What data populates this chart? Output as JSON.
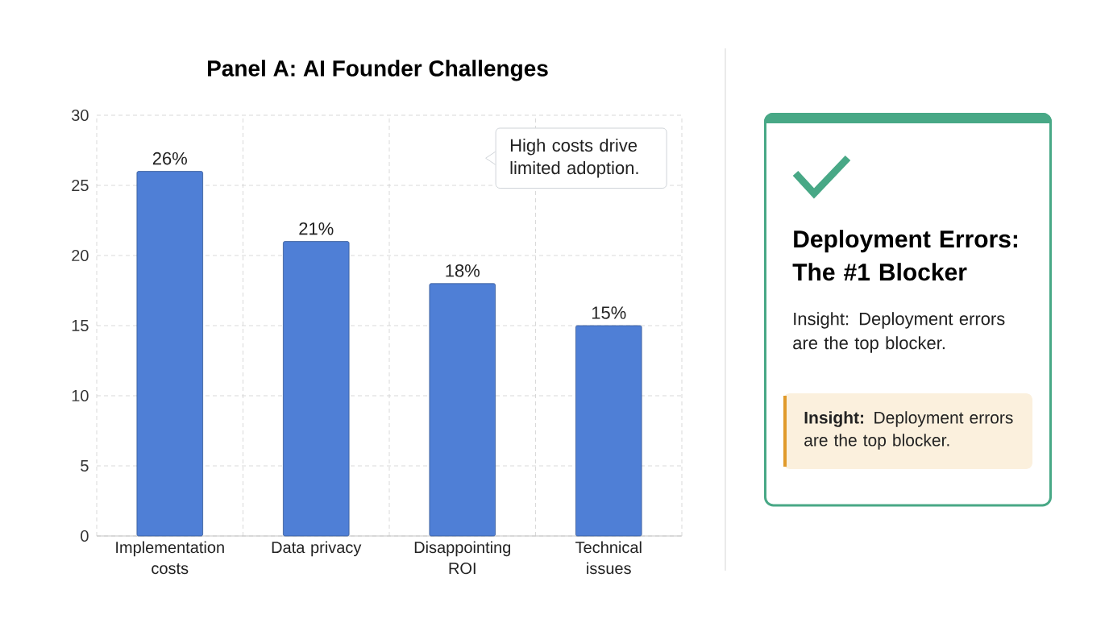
{
  "chart_data": [
    {
      "type": "bar",
      "title": "Panel A: AI Founder Challenges",
      "categories": [
        "Implementation costs",
        "Data privacy",
        "Disappointing ROI",
        "Technical issues"
      ],
      "values": [
        26,
        21,
        18,
        15
      ],
      "value_labels": [
        "26%",
        "21%",
        "18%",
        "15%"
      ],
      "color": "#4f7fd6",
      "ylim": [
        0,
        30
      ],
      "yticks": [
        0,
        5,
        10,
        15,
        20,
        25,
        30
      ],
      "grid": true,
      "annotations": [
        "High costs drive limited adoption."
      ]
    },
    {
      "type": "other",
      "title": "Deployment Errors: The #1 Blocker",
      "annotations": [
        "Insight: Deployment errors are the top blocker.",
        "**Insight:** Deployment errors are the top blocker."
      ]
    }
  ]
}
